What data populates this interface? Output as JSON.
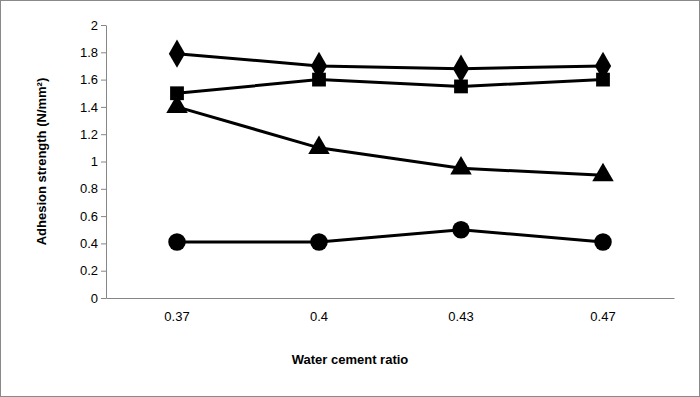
{
  "chart_data": {
    "type": "line",
    "x_label": "Water cement ratio",
    "y_label": "Adhesion strength (N/mm²)",
    "categories": [
      "0.37",
      "0.4",
      "0.43",
      "0.47"
    ],
    "series": [
      {
        "color": "#000000",
        "marker": "diamond",
        "values": [
          1.79,
          1.7,
          1.68,
          1.7
        ]
      },
      {
        "color": "#000000",
        "marker": "square",
        "values": [
          1.5,
          1.6,
          1.55,
          1.6
        ]
      },
      {
        "color": "#000000",
        "marker": "triangle",
        "values": [
          1.4,
          1.1,
          0.95,
          0.9
        ]
      },
      {
        "color": "#000000",
        "marker": "circle",
        "values": [
          0.41,
          0.41,
          0.5,
          0.41
        ]
      }
    ],
    "ylim": [
      0,
      2
    ],
    "yticks": [
      0,
      0.2,
      0.4,
      0.6,
      0.8,
      1,
      1.2,
      1.4,
      1.6,
      1.8,
      2
    ],
    "grid": false
  }
}
